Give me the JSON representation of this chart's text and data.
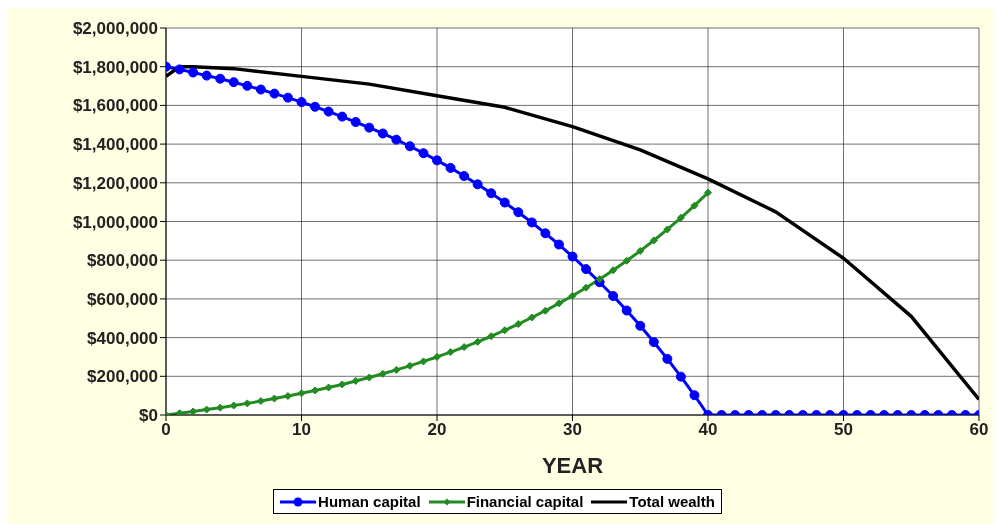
{
  "chart_data": {
    "type": "line",
    "xlabel": "YEAR",
    "xlim": [
      0,
      60
    ],
    "xticks": [
      0,
      10,
      20,
      30,
      40,
      50,
      60
    ],
    "ylim": [
      0,
      2000000
    ],
    "yticks": [
      {
        "value": 0,
        "label": "$0"
      },
      {
        "value": 200000,
        "label": "$200,000"
      },
      {
        "value": 400000,
        "label": "$400,000"
      },
      {
        "value": 600000,
        "label": "$600,000"
      },
      {
        "value": 800000,
        "label": "$800,000"
      },
      {
        "value": 1000000,
        "label": "$1,000,000"
      },
      {
        "value": 1200000,
        "label": "$1,200,000"
      },
      {
        "value": 1400000,
        "label": "$1,400,000"
      },
      {
        "value": 1600000,
        "label": "$1,600,000"
      },
      {
        "value": 1800000,
        "label": "$1,800,000"
      },
      {
        "value": 2000000,
        "label": "$2,000,000"
      }
    ],
    "grid": true,
    "legend": "bottom",
    "series": [
      {
        "name": "Human capital",
        "color": "#0000ff",
        "marker": "circle",
        "x": [
          0,
          1,
          2,
          3,
          4,
          5,
          6,
          7,
          8,
          9,
          10,
          11,
          12,
          13,
          14,
          15,
          16,
          17,
          18,
          19,
          20,
          21,
          22,
          23,
          24,
          25,
          26,
          27,
          28,
          29,
          30,
          31,
          32,
          33,
          34,
          35,
          36,
          37,
          38,
          39,
          40,
          41,
          42,
          43,
          44,
          45,
          46,
          47,
          48,
          49,
          50,
          51,
          52,
          53,
          54,
          55,
          56,
          57,
          58,
          59,
          60
        ],
        "values": [
          1800000,
          1786000,
          1770000,
          1754000,
          1738000,
          1720000,
          1701000,
          1682000,
          1661000,
          1640000,
          1617000,
          1593000,
          1568000,
          1542000,
          1514000,
          1485000,
          1455000,
          1423000,
          1389000,
          1353000,
          1316000,
          1277000,
          1235000,
          1192000,
          1146000,
          1098000,
          1048000,
          995000,
          939000,
          881000,
          819000,
          754000,
          686000,
          615000,
          540000,
          461000,
          377000,
          290000,
          198000,
          102000,
          0,
          0,
          0,
          0,
          0,
          0,
          0,
          0,
          0,
          0,
          0,
          0,
          0,
          0,
          0,
          0,
          0,
          0,
          0,
          0,
          0
        ]
      },
      {
        "name": "Financial capital",
        "color": "#228b22",
        "marker": "diamond",
        "x": [
          0,
          1,
          2,
          3,
          4,
          5,
          6,
          7,
          8,
          9,
          10,
          11,
          12,
          13,
          14,
          15,
          16,
          17,
          18,
          19,
          20,
          21,
          22,
          23,
          24,
          25,
          26,
          27,
          28,
          29,
          30,
          31,
          32,
          33,
          34,
          35,
          36,
          37,
          38,
          39,
          40
        ],
        "values": [
          0,
          9000,
          18000,
          28000,
          38000,
          49000,
          60000,
          72000,
          85000,
          98000,
          112000,
          127000,
          142000,
          158000,
          176000,
          194000,
          213000,
          233000,
          254000,
          277000,
          300000,
          325000,
          351000,
          378000,
          407000,
          438000,
          470000,
          504000,
          539000,
          577000,
          616000,
          658000,
          702000,
          748000,
          797000,
          848000,
          902000,
          959000,
          1019000,
          1082000,
          1149000
        ]
      },
      {
        "name": "Total wealth",
        "color": "#000000",
        "marker": "none",
        "x": [
          0,
          1,
          2,
          5,
          10,
          15,
          20,
          25,
          30,
          35,
          40,
          45,
          50,
          55,
          60
        ],
        "values": [
          1750000,
          1800000,
          1800000,
          1790000,
          1750000,
          1710000,
          1650000,
          1590000,
          1490000,
          1370000,
          1220000,
          1050000,
          810000,
          510000,
          80000
        ]
      }
    ]
  }
}
